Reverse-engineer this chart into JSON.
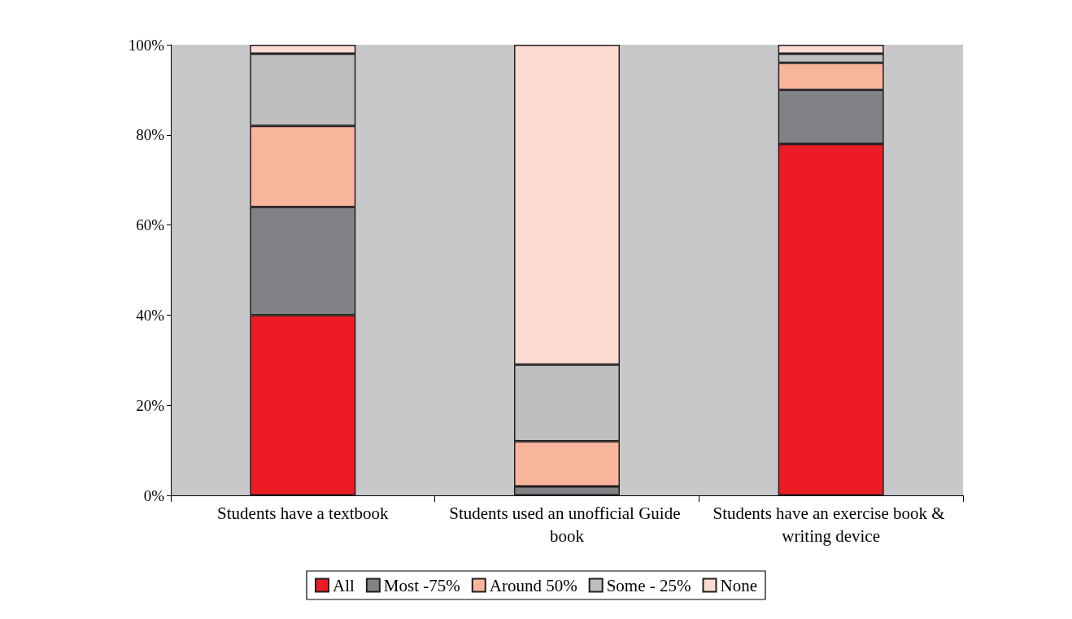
{
  "chart_data": {
    "type": "bar",
    "stacked": true,
    "categories": [
      "Students have a textbook",
      "Students used an unofficial Guide book",
      "Students have an exercise book & writing device"
    ],
    "series": [
      {
        "name": "All",
        "color": "#ed1c24",
        "values": [
          40,
          0,
          78
        ]
      },
      {
        "name": "Most -75%",
        "color": "#808285",
        "values": [
          24,
          2,
          12
        ]
      },
      {
        "name": "Around 50%",
        "color": "#f9b49c",
        "values": [
          18,
          10,
          6
        ]
      },
      {
        "name": "Some - 25%",
        "color": "#bcbec0",
        "values": [
          16,
          17,
          2
        ]
      },
      {
        "name": "None",
        "color": "#fcdcd0",
        "values": [
          2,
          71,
          2
        ]
      }
    ],
    "ylim": [
      0,
      100
    ],
    "yticks": [
      {
        "value": 0,
        "label": "0%"
      },
      {
        "value": 20,
        "label": "20%"
      },
      {
        "value": 40,
        "label": "40%"
      },
      {
        "value": 60,
        "label": "60%"
      },
      {
        "value": 80,
        "label": "80%"
      },
      {
        "value": 100,
        "label": "100%"
      }
    ],
    "grid": false,
    "legend": "bottom"
  }
}
